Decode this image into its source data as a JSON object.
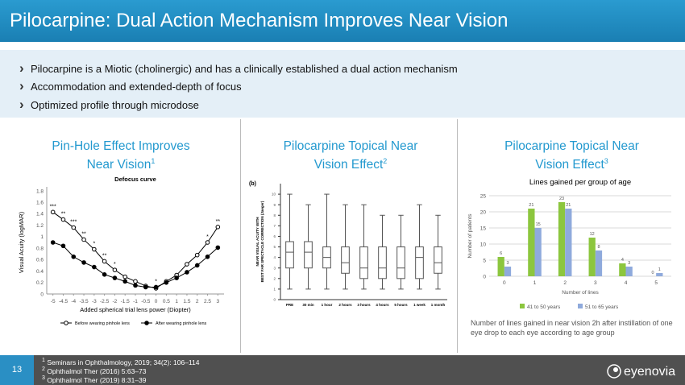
{
  "header": {
    "title": "Pilocarpine: Dual Action Mechanism Improves Near Vision"
  },
  "bullets": [
    "Pilocarpine is a Miotic (cholinergic) and has a clinically established a dual action mechanism",
    "Accommodation  and extended-depth  of focus",
    "Optimized  profile through microdose"
  ],
  "panels": [
    {
      "title": "Pin-Hole Effect Improves Near Vision",
      "ref": "1",
      "chart": {
        "type": "line",
        "title": "Defocus curve",
        "ylabel": "Visual Acuity (logMAR)",
        "xlabel": "Added spherical trial lens power (Diopter)",
        "x": [
          -5,
          -4.5,
          -4,
          -3.5,
          -3,
          -2.5,
          -2,
          -1.5,
          -1,
          -0.5,
          0,
          0.5,
          1,
          1.5,
          2,
          2.5,
          3
        ],
        "xlim": [
          -5.3,
          3.3
        ],
        "xticks": [
          -5,
          -4.5,
          -4,
          -3.5,
          -3,
          -2.5,
          -2,
          -1.5,
          -1,
          -0.5,
          0,
          0.5,
          1,
          1.5,
          2,
          2.5,
          3
        ],
        "ylim": [
          0,
          1.8
        ],
        "yticks": [
          0,
          0.2,
          0.4,
          0.6,
          0.8,
          1,
          1.2,
          1.4,
          1.6,
          1.8
        ],
        "grid": false,
        "series": [
          {
            "name": "Before wearing pinhole lens",
            "color": "#000000",
            "marker": "open",
            "values": [
              1.43,
              1.3,
              1.16,
              0.95,
              0.78,
              0.57,
              0.42,
              0.3,
              0.22,
              0.14,
              0.1,
              0.22,
              0.33,
              0.52,
              0.68,
              0.9,
              1.17
            ]
          },
          {
            "name": "After wearing pinhole lens",
            "color": "#000000",
            "marker": "filled",
            "values": [
              0.9,
              0.84,
              0.65,
              0.55,
              0.47,
              0.34,
              0.28,
              0.22,
              0.15,
              0.12,
              0.12,
              0.2,
              0.28,
              0.38,
              0.5,
              0.65,
              0.81
            ]
          }
        ],
        "annotations": [
          {
            "x": -5,
            "label": "***"
          },
          {
            "x": -4.5,
            "label": "**"
          },
          {
            "x": -4,
            "label": "***"
          },
          {
            "x": -3.5,
            "label": "**"
          },
          {
            "x": -3,
            "label": "*"
          },
          {
            "x": -2.5,
            "label": "**"
          },
          {
            "x": -2,
            "label": "*"
          },
          {
            "x": 0,
            "label": "*"
          },
          {
            "x": 2.5,
            "label": "*"
          },
          {
            "x": 3,
            "label": "**"
          }
        ]
      }
    },
    {
      "title": "Pilocarpine Topical Near Vision Effect",
      "ref": "2",
      "chart": {
        "type": "box",
        "panel_label": "(b)",
        "ylabel": [
          "NEAR VISUAL ACUITY WITH",
          "BEST FAR SPECTACLE CORRECTION (Jaeger)"
        ],
        "categories": [
          "PRE",
          "30 min",
          "1 hour",
          "2 hours",
          "3 hours",
          "4 hours",
          "5 hours",
          "1 week",
          "1 month"
        ],
        "ylim": [
          0,
          11
        ],
        "yticks": [
          0,
          1,
          2,
          3,
          4,
          5,
          6,
          7,
          8,
          9,
          10
        ],
        "color": "#555555",
        "boxes": [
          {
            "min": 1,
            "q1": 3,
            "median": 4.5,
            "q3": 5.5,
            "max": 10
          },
          {
            "min": 1,
            "q1": 3,
            "median": 4.5,
            "q3": 5.5,
            "max": 9
          },
          {
            "min": 1,
            "q1": 3,
            "median": 4,
            "q3": 5,
            "max": 10
          },
          {
            "min": 1,
            "q1": 2.5,
            "median": 3.5,
            "q3": 5,
            "max": 9
          },
          {
            "min": 1,
            "q1": 2,
            "median": 3,
            "q3": 5,
            "max": 9
          },
          {
            "min": 1,
            "q1": 2,
            "median": 3,
            "q3": 5,
            "max": 8
          },
          {
            "min": 1,
            "q1": 2,
            "median": 3,
            "q3": 5,
            "max": 8
          },
          {
            "min": 1,
            "q1": 2,
            "median": 4,
            "q3": 5,
            "max": 9
          },
          {
            "min": 1,
            "q1": 2.5,
            "median": 3.5,
            "q3": 5,
            "max": 8
          }
        ]
      }
    },
    {
      "title": "Pilocarpine Topical Near Vision Effect",
      "ref": "3",
      "chart": {
        "type": "bar",
        "title": "Lines gained per group of age",
        "ylabel": "Number of patients",
        "xlabel": "Number of lines",
        "categories": [
          "0",
          "1",
          "2",
          "3",
          "4",
          "5"
        ],
        "ylim": [
          0,
          25
        ],
        "yticks": [
          0,
          5,
          10,
          15,
          20,
          25
        ],
        "grid": true,
        "series": [
          {
            "name": "41 to 50 years",
            "color": "#8cc63e",
            "values": [
              6,
              21,
              23,
              12,
              4,
              0
            ]
          },
          {
            "name": "51 to 65 years",
            "color": "#8faadc",
            "values": [
              3,
              15,
              21,
              8,
              3,
              1
            ]
          }
        ]
      },
      "caption": "Number of lines gained in near vision 2h after instillation of one eye drop to each eye according to age group"
    }
  ],
  "footer": {
    "page": "13",
    "refs": [
      {
        "n": "1",
        "text": "Seminars in Ophthalmology, 2019; 34(2): 106–114"
      },
      {
        "n": "2",
        "text": "Ophthalmol Ther (2016) 5:63–73"
      },
      {
        "n": "3",
        "text": "Ophthalmol Ther (2019) 8:31–39"
      }
    ],
    "logo": "eyenovia"
  }
}
